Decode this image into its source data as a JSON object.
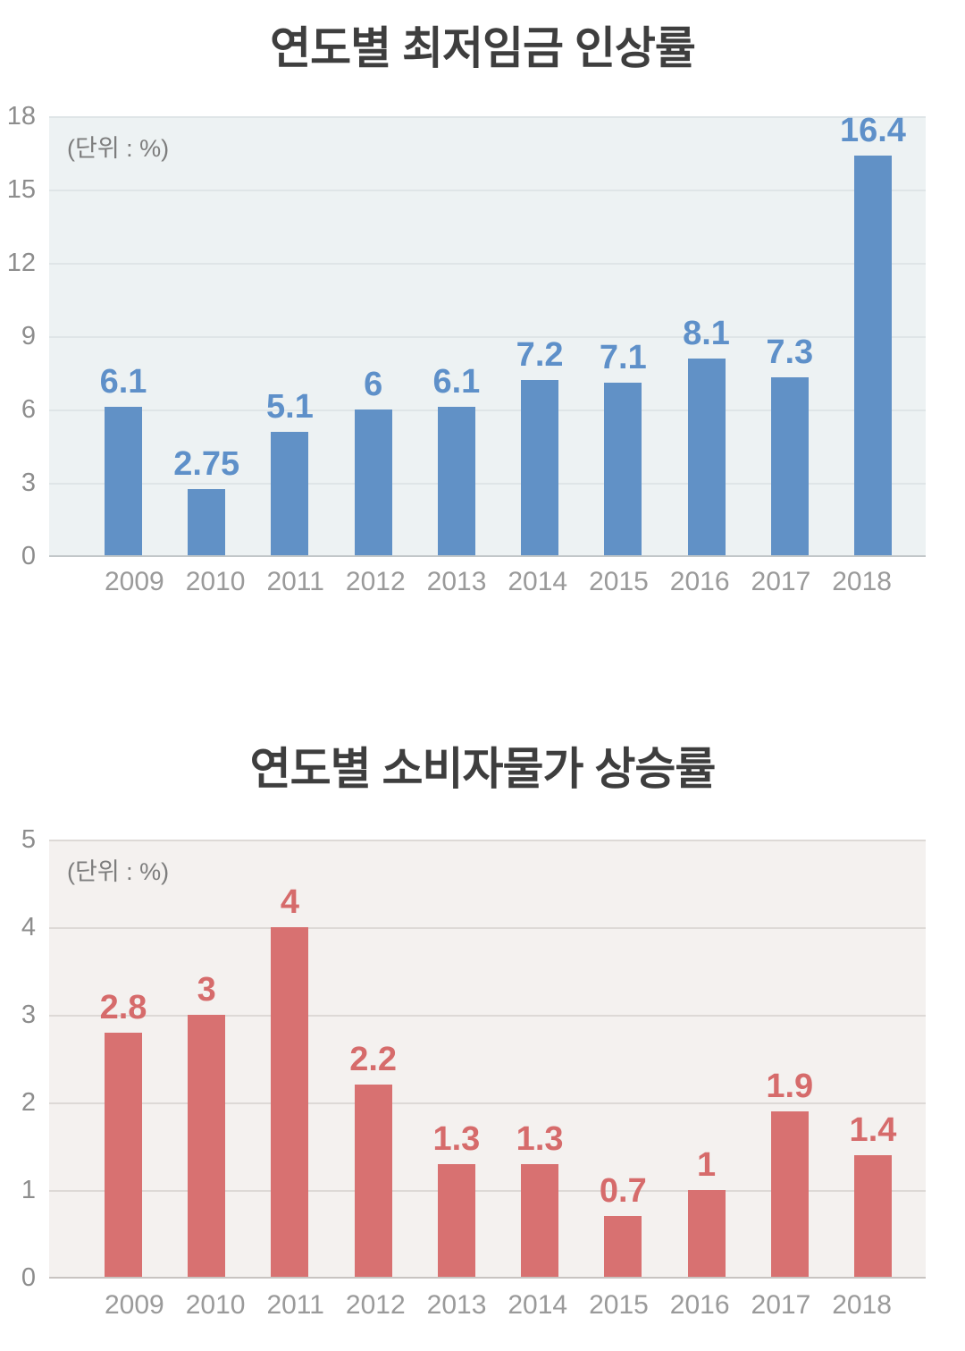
{
  "chart_data": [
    {
      "type": "bar",
      "title": "연도별 최저임금 인상률",
      "unit_label": "(단위 : %)",
      "categories": [
        "2009",
        "2010",
        "2011",
        "2012",
        "2013",
        "2014",
        "2015",
        "2016",
        "2017",
        "2018"
      ],
      "values": [
        6.1,
        2.75,
        5.1,
        6,
        6.1,
        7.2,
        7.1,
        8.1,
        7.3,
        16.4
      ],
      "value_labels": [
        "6.1",
        "2.75",
        "5.1",
        "6",
        "6.1",
        "7.2",
        "7.1",
        "8.1",
        "7.3",
        "16.4"
      ],
      "ylim": [
        0,
        18
      ],
      "ytick_step": 3,
      "yticks": [
        18,
        15,
        12,
        9,
        6,
        3,
        0
      ],
      "grid": "horizontal",
      "legend": "none",
      "colors": {
        "bar": "#6191c6",
        "value_label": "#5e90c9",
        "plot_background": "#edf2f3",
        "gridline": "#dfe5e7",
        "baseline": "#c2c7c9",
        "axis_text": "#8d8d8d",
        "x_axis_text": "#9a9a9a",
        "title": "#3e3e3e",
        "unit_text": "#7d7d7d"
      }
    },
    {
      "type": "bar",
      "title": "연도별 소비자물가 상승률",
      "unit_label": "(단위 : %)",
      "categories": [
        "2009",
        "2010",
        "2011",
        "2012",
        "2013",
        "2014",
        "2015",
        "2016",
        "2017",
        "2018"
      ],
      "values": [
        2.8,
        3,
        4,
        2.2,
        1.3,
        1.3,
        0.7,
        1,
        1.9,
        1.4
      ],
      "value_labels": [
        "2.8",
        "3",
        "4",
        "2.2",
        "1.3",
        "1.3",
        "0.7",
        "1",
        "1.9",
        "1.4"
      ],
      "ylim": [
        0,
        5
      ],
      "ytick_step": 1,
      "yticks": [
        5,
        4,
        3,
        2,
        1,
        0
      ],
      "grid": "horizontal",
      "legend": "none",
      "colors": {
        "bar": "#d87171",
        "value_label": "#d66b6b",
        "plot_background": "#f4f1ef",
        "gridline": "#ddd9d6",
        "baseline": "#c8c4c1",
        "axis_text": "#8d8d8d",
        "x_axis_text": "#9a9a9a",
        "title": "#3e3e3e",
        "unit_text": "#7d7d7d"
      }
    }
  ]
}
